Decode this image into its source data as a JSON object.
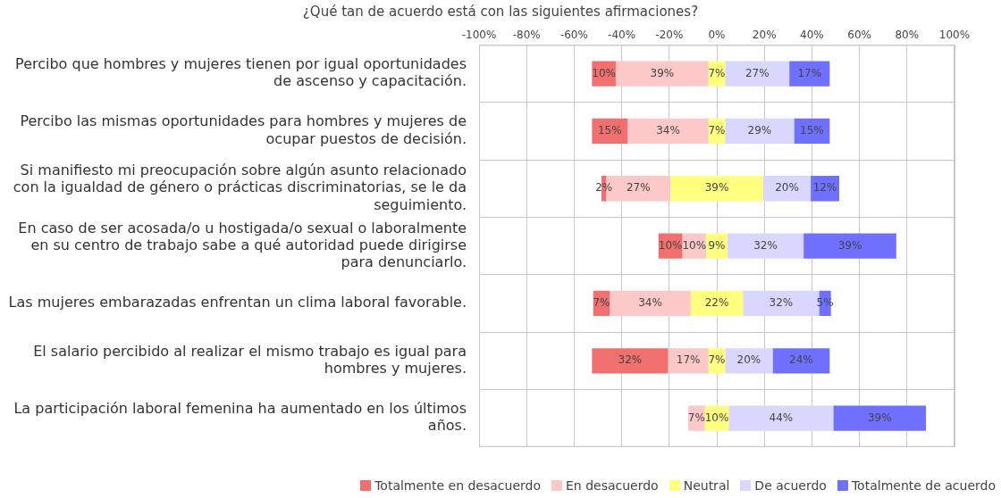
{
  "chart_data": {
    "type": "bar",
    "orientation": "horizontal",
    "title": "¿Qué tan de acuerdo está con las siguientes afirmaciones?",
    "categories": [
      "Percibo que hombres y mujeres tienen por igual oportunidades de ascenso y capacitación.",
      "Percibo las mismas oportunidades para hombres y mujeres de ocupar puestos de decisión.",
      "Si manifiesto mi preocupación sobre algún asunto relacionado con la igualdad de género o prácticas discriminatorias, se le da seguimiento.",
      "En caso de ser acosada/o u hostigada/o sexual o laboralmente en su centro de trabajo sabe a qué autoridad puede dirigirse para denunciarlo.",
      "Las mujeres embarazadas enfrentan un clima laboral favorable.",
      "El salario percibido al realizar el mismo trabajo es igual para hombres y mujeres.",
      "La participación laboral femenina ha aumentado en los últimos años."
    ],
    "series": [
      {
        "name": "Totalmente en desacuerdo",
        "color": "#f07070",
        "values": [
          10,
          15,
          2,
          10,
          7,
          32,
          null
        ],
        "base": [
          -52.5,
          -52.5,
          -48.5,
          -24.5,
          -52,
          -52.5,
          null
        ],
        "value_labels": [
          "10%",
          "15%",
          "2%",
          "10%",
          "7%",
          "32%",
          null
        ]
      },
      {
        "name": "En desacuerdo",
        "color": "#fcc8c8",
        "values": [
          39,
          34,
          27,
          10,
          34,
          17,
          7
        ],
        "base": [
          -42.5,
          -37.5,
          -46.5,
          -14.5,
          -45,
          -20.5,
          -12
        ],
        "value_labels": [
          "39%",
          "34%",
          "27%",
          "10%",
          "34%",
          "17%",
          "7%"
        ]
      },
      {
        "name": "Neutral",
        "color": "#ffff80",
        "values": [
          7,
          7,
          39,
          9,
          22,
          7,
          10
        ],
        "base": [
          -3.5,
          -3.5,
          -19.5,
          -4.5,
          -11,
          -3.5,
          -5
        ],
        "value_labels": [
          "7%",
          "7%",
          "39%",
          "9%",
          "22%",
          "7%",
          "10%"
        ]
      },
      {
        "name": "De acuerdo",
        "color": "#d8d8ff",
        "values": [
          27,
          29,
          20,
          32,
          32,
          20,
          44
        ],
        "base": [
          3.5,
          3.5,
          19.5,
          4.5,
          11,
          3.5,
          5
        ],
        "value_labels": [
          "27%",
          "29%",
          "20%",
          "32%",
          "32%",
          "20%",
          "44%"
        ]
      },
      {
        "name": "Totalmente de acuerdo",
        "color": "#7070ff",
        "values": [
          17,
          15,
          12,
          39,
          5,
          24,
          39
        ],
        "base": [
          30.5,
          32.5,
          39.5,
          36.5,
          43,
          23.5,
          49
        ],
        "value_labels": [
          "17%",
          "15%",
          "12%",
          "39%",
          "5%",
          "24%",
          "39%"
        ]
      }
    ],
    "xlim": [
      -100,
      100
    ],
    "xticks": [
      {
        "value": -100,
        "label": "-100%"
      },
      {
        "value": -80,
        "label": "-80%"
      },
      {
        "value": -60,
        "label": "-60%"
      },
      {
        "value": -40,
        "label": "-40%"
      },
      {
        "value": -20,
        "label": "-20%"
      },
      {
        "value": 0,
        "label": "0%"
      },
      {
        "value": 20,
        "label": "20%"
      },
      {
        "value": 40,
        "label": "40%"
      },
      {
        "value": 60,
        "label": "60%"
      },
      {
        "value": 80,
        "label": "80%"
      },
      {
        "value": 100,
        "label": "100%"
      }
    ],
    "grid": true,
    "legend": "bottom"
  }
}
